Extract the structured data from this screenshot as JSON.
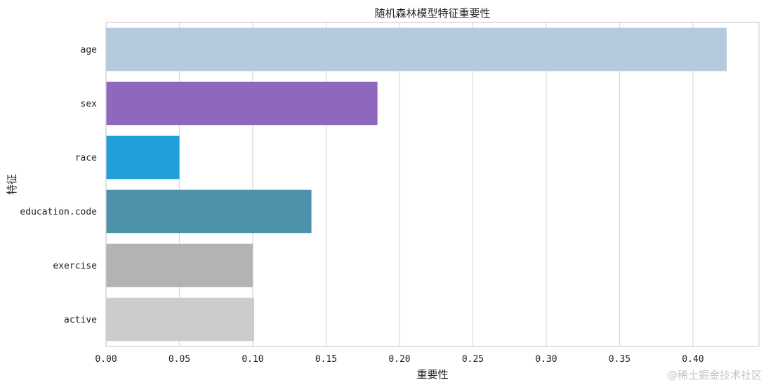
{
  "chart_data": {
    "type": "bar",
    "orientation": "horizontal",
    "title": "随机森林模型特征重要性",
    "xlabel": "重要性",
    "ylabel": "特征",
    "xlim": [
      0,
      0.445
    ],
    "xticks": [
      0.0,
      0.05,
      0.1,
      0.15,
      0.2,
      0.25,
      0.3,
      0.35,
      0.4
    ],
    "xtick_labels": [
      "0.00",
      "0.05",
      "0.10",
      "0.15",
      "0.20",
      "0.25",
      "0.30",
      "0.35",
      "0.40"
    ],
    "grid": "vertical",
    "categories": [
      "age",
      "sex",
      "race",
      "education.code",
      "exercise",
      "active"
    ],
    "values": [
      0.423,
      0.185,
      0.05,
      0.14,
      0.1,
      0.101
    ],
    "colors": [
      "#b6cadd",
      "#8f67bc",
      "#1fa0da",
      "#4b92aa",
      "#b3b3b3",
      "#cccccc"
    ]
  },
  "watermark": "@稀土掘金技术社区"
}
